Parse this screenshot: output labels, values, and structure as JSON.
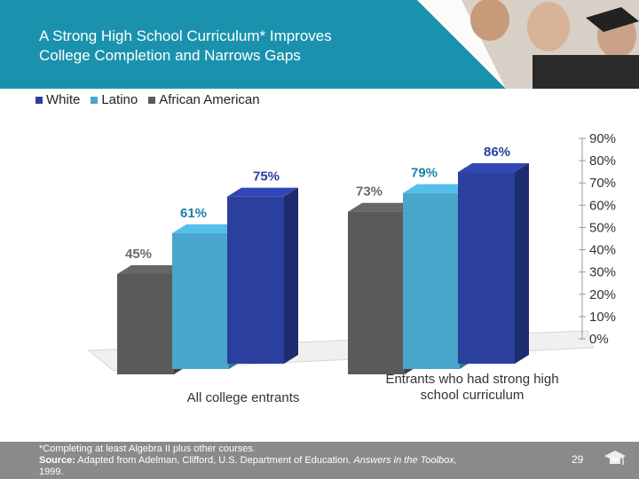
{
  "slide": {
    "title_line1": "A Strong High School Curriculum* Improves",
    "title_line2": "College Completion and Narrows Gaps",
    "page_number": "29",
    "footnote_line1": "*Completing at least Algebra II plus other courses.",
    "footnote_source_label": "Source:",
    "footnote_source_text": " Adapted from Adelman, Clifford, U.S. Department of Education, ",
    "footnote_source_title": "Answers in the Toolbox,",
    "footnote_source_year": "1999.",
    "colors": {
      "banner": "#1b92ad",
      "footer": "#8a8a8a"
    }
  },
  "chart_data": {
    "type": "bar",
    "categories": [
      "All college entrants",
      "Entrants who had strong high school curriculum"
    ],
    "category_lines": [
      [
        "All college entrants"
      ],
      [
        "Entrants who had strong high",
        "school curriculum"
      ]
    ],
    "series": [
      {
        "name": "White",
        "values": [
          75,
          86
        ],
        "labels": [
          "75%",
          "86%"
        ],
        "color": "#2a3f9e"
      },
      {
        "name": "Latino",
        "values": [
          61,
          79
        ],
        "labels": [
          "61%",
          "79%"
        ],
        "color": "#4aa6cc"
      },
      {
        "name": "African American",
        "values": [
          45,
          73
        ],
        "labels": [
          "45%",
          "73%"
        ],
        "color": "#5a5a5a"
      }
    ],
    "ylim": [
      0,
      90
    ],
    "yticks": [
      "0%",
      "10%",
      "20%",
      "30%",
      "40%",
      "50%",
      "60%",
      "70%",
      "80%",
      "90%"
    ],
    "legend": "top-left",
    "grid": false
  }
}
